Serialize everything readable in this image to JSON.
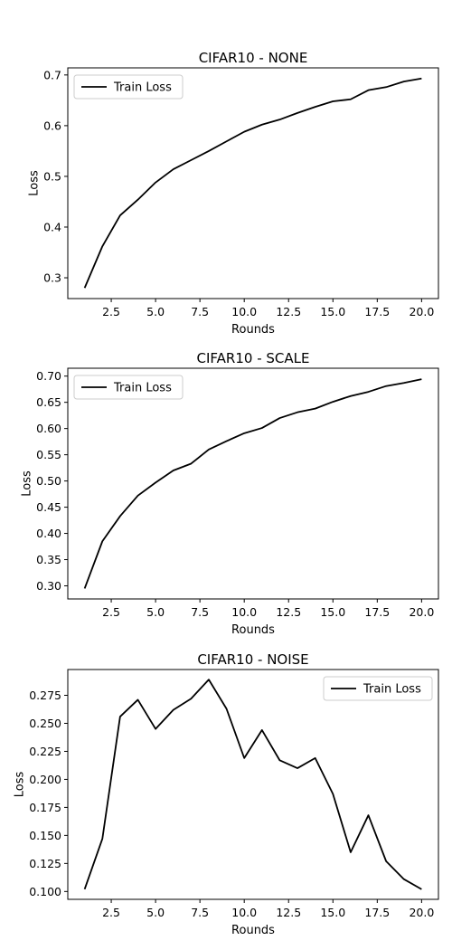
{
  "chart_data": [
    {
      "type": "line",
      "title": "CIFAR10 - NONE",
      "xlabel": "Rounds",
      "ylabel": "Loss",
      "xlim": [
        0.05,
        20.95
      ],
      "ylim": [
        0.259,
        0.714
      ],
      "xticks": [
        "2.5",
        "5.0",
        "7.5",
        "10.0",
        "12.5",
        "15.0",
        "17.5",
        "20.0"
      ],
      "yticks": [
        "0.3",
        "0.4",
        "0.5",
        "0.6",
        "0.7"
      ],
      "grid": false,
      "legend_position": "top-left",
      "series": [
        {
          "name": "Train Loss",
          "color": "#000000",
          "x": [
            1,
            2,
            3,
            4,
            5,
            6,
            7,
            8,
            9,
            10,
            11,
            12,
            13,
            14,
            15,
            16,
            17,
            18,
            19,
            20
          ],
          "y": [
            0.28,
            0.362,
            0.423,
            0.454,
            0.488,
            0.514,
            0.532,
            0.55,
            0.569,
            0.588,
            0.602,
            0.612,
            0.625,
            0.637,
            0.648,
            0.652,
            0.67,
            0.676,
            0.687,
            0.693
          ]
        }
      ]
    },
    {
      "type": "line",
      "title": "CIFAR10 - SCALE",
      "xlabel": "Rounds",
      "ylabel": "Loss",
      "xlim": [
        0.05,
        20.95
      ],
      "ylim": [
        0.275,
        0.715
      ],
      "xticks": [
        "2.5",
        "5.0",
        "7.5",
        "10.0",
        "12.5",
        "15.0",
        "17.5",
        "20.0"
      ],
      "yticks": [
        "0.30",
        "0.35",
        "0.40",
        "0.45",
        "0.50",
        "0.55",
        "0.60",
        "0.65",
        "0.70"
      ],
      "grid": false,
      "legend_position": "top-left",
      "series": [
        {
          "name": "Train Loss",
          "color": "#000000",
          "x": [
            1,
            2,
            3,
            4,
            5,
            6,
            7,
            8,
            9,
            10,
            11,
            12,
            13,
            14,
            15,
            16,
            17,
            18,
            19,
            20
          ],
          "y": [
            0.295,
            0.385,
            0.433,
            0.472,
            0.497,
            0.52,
            0.533,
            0.56,
            0.576,
            0.591,
            0.601,
            0.62,
            0.631,
            0.638,
            0.651,
            0.662,
            0.67,
            0.681,
            0.687,
            0.694
          ]
        }
      ]
    },
    {
      "type": "line",
      "title": "CIFAR10 - NOISE",
      "xlabel": "Rounds",
      "ylabel": "Loss",
      "xlim": [
        0.05,
        20.95
      ],
      "ylim": [
        0.093,
        0.298
      ],
      "xticks": [
        "2.5",
        "5.0",
        "7.5",
        "10.0",
        "12.5",
        "15.0",
        "17.5",
        "20.0"
      ],
      "yticks": [
        "0.100",
        "0.125",
        "0.150",
        "0.175",
        "0.200",
        "0.225",
        "0.250",
        "0.275"
      ],
      "grid": false,
      "legend_position": "top-right",
      "series": [
        {
          "name": "Train Loss",
          "color": "#000000",
          "x": [
            1,
            2,
            3,
            4,
            5,
            6,
            7,
            8,
            9,
            10,
            11,
            12,
            13,
            14,
            15,
            16,
            17,
            18,
            19,
            20
          ],
          "y": [
            0.102,
            0.147,
            0.256,
            0.271,
            0.245,
            0.262,
            0.272,
            0.289,
            0.263,
            0.219,
            0.244,
            0.217,
            0.21,
            0.219,
            0.187,
            0.135,
            0.168,
            0.127,
            0.111,
            0.102
          ]
        }
      ]
    }
  ]
}
